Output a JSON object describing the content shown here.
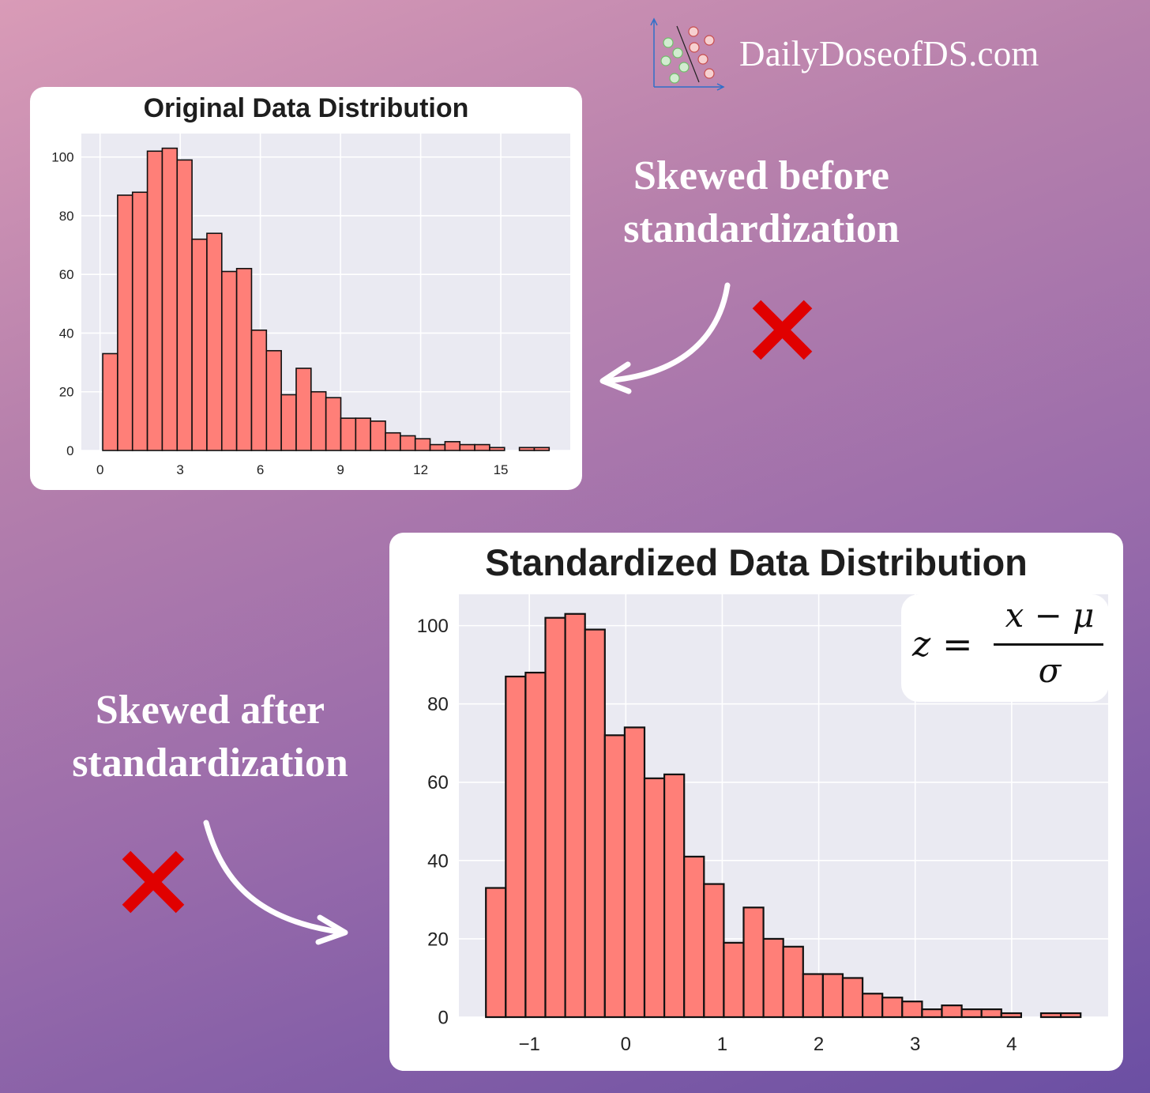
{
  "brand": {
    "text": "DailyDoseofDS.com",
    "logo_icon": "scatter-classifier-logo-icon"
  },
  "annotations": {
    "before": {
      "line1": "Skewed before",
      "line2": "standardization",
      "mark": "red-x-icon",
      "arrow": "curved-arrow-left-icon"
    },
    "after": {
      "line1": "Skewed after",
      "line2": "standardization",
      "mark": "red-x-icon",
      "arrow": "curved-arrow-right-icon"
    }
  },
  "formula": {
    "lhs": "z",
    "eq": "=",
    "numerator": "x − μ",
    "denominator": "σ"
  },
  "colors": {
    "bar_fill": "#ff7f78",
    "bar_edge": "#111111",
    "plot_bg": "#eaeaf2",
    "grid": "#ffffff",
    "x_mark": "#e00000",
    "gradient_top_left": "#d99bb7",
    "gradient_bottom_right": "#6b4fa3"
  },
  "chart_data": [
    {
      "type": "bar",
      "title": "Original Data Distribution",
      "xlabel": "",
      "ylabel": "",
      "x_ticks": [
        "0",
        "3",
        "6",
        "9",
        "12",
        "15"
      ],
      "x_tick_values": [
        0,
        3,
        6,
        9,
        12,
        15
      ],
      "y_ticks": [
        "0",
        "20",
        "40",
        "60",
        "80",
        "100"
      ],
      "y_tick_values": [
        0,
        20,
        40,
        60,
        80,
        100
      ],
      "xlim": [
        -0.7,
        17.6
      ],
      "ylim": [
        0,
        108
      ],
      "grid": true,
      "bin_start": 0.1,
      "bin_width": 0.557,
      "values": [
        33,
        87,
        88,
        102,
        103,
        99,
        72,
        74,
        61,
        62,
        41,
        34,
        19,
        28,
        20,
        18,
        11,
        11,
        10,
        6,
        5,
        4,
        2,
        3,
        2,
        2,
        1,
        0,
        1,
        1
      ]
    },
    {
      "type": "bar",
      "title": "Standardized Data Distribution",
      "xlabel": "",
      "ylabel": "",
      "x_ticks": [
        "−1",
        "0",
        "1",
        "2",
        "3",
        "4"
      ],
      "x_tick_values": [
        -1,
        0,
        1,
        2,
        3,
        4
      ],
      "y_ticks": [
        "0",
        "20",
        "40",
        "60",
        "80",
        "100"
      ],
      "y_tick_values": [
        0,
        20,
        40,
        60,
        80,
        100
      ],
      "xlim": [
        -1.73,
        5.0
      ],
      "ylim": [
        0,
        108
      ],
      "grid": true,
      "bin_start": -1.45,
      "bin_width": 0.2055,
      "values": [
        33,
        87,
        88,
        102,
        103,
        99,
        72,
        74,
        61,
        62,
        41,
        34,
        19,
        28,
        20,
        18,
        11,
        11,
        10,
        6,
        5,
        4,
        2,
        3,
        2,
        2,
        1,
        0,
        1,
        1
      ]
    }
  ]
}
